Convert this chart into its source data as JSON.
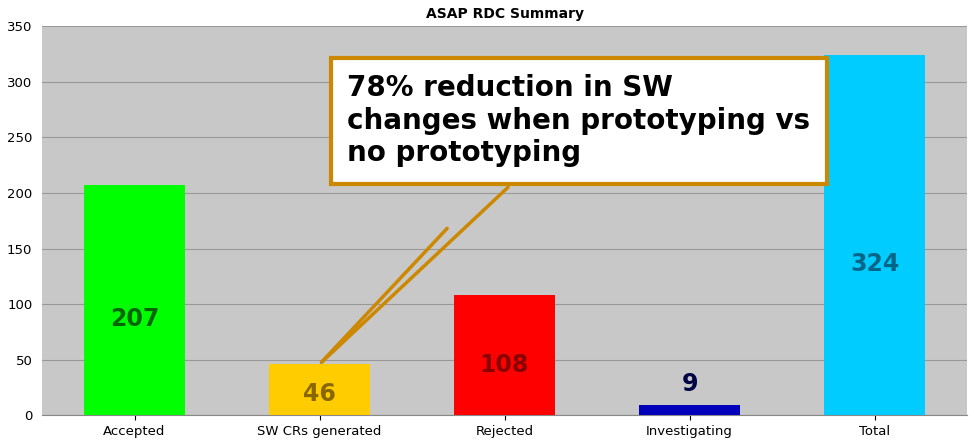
{
  "title": "ASAP RDC Summary",
  "categories": [
    "Accepted",
    "SW CRs generated",
    "Rejected",
    "Investigating",
    "Total"
  ],
  "values": [
    207,
    46,
    108,
    9,
    324
  ],
  "bar_colors": [
    "#00ff00",
    "#ffcc00",
    "#ff0000",
    "#0000bb",
    "#00ccff"
  ],
  "bar_label_colors": [
    "#006600",
    "#886600",
    "#880000",
    "#000044",
    "#006688"
  ],
  "ylim": [
    0,
    350
  ],
  "yticks": [
    0,
    50,
    100,
    150,
    200,
    250,
    300,
    350
  ],
  "fig_bg_color": "#ffffff",
  "plot_bg_color": "#c8c8c8",
  "title_fontsize": 10,
  "annotation_text": "78% reduction in SW\nchanges when prototyping vs\nno prototyping",
  "annotation_fontsize": 20,
  "value_fontsize": 17,
  "grid_color": "#999999"
}
